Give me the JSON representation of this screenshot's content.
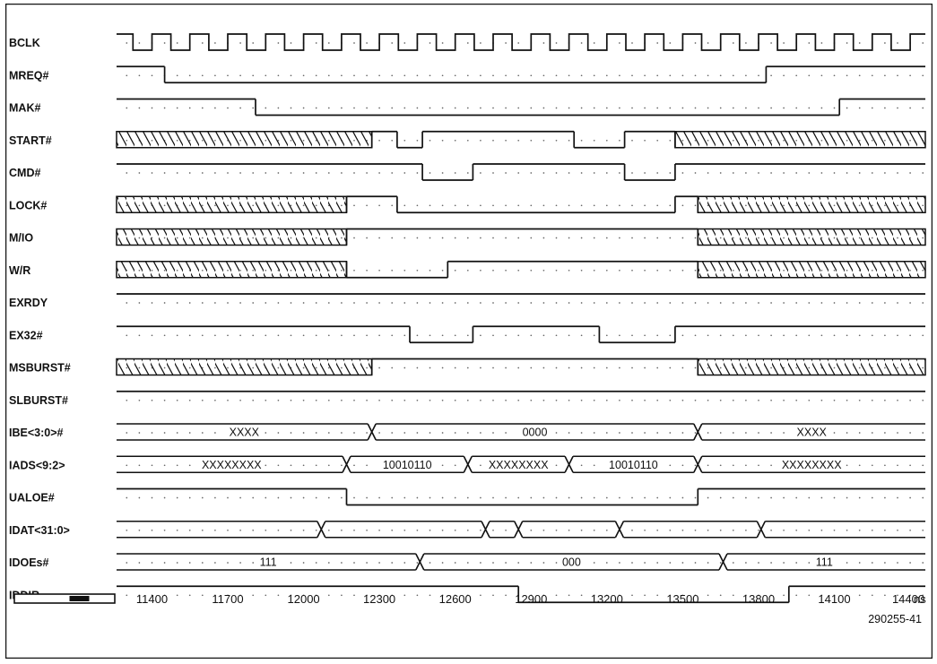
{
  "figure_id": "290255-41",
  "time_unit": "ns",
  "axis_start_ns": 11260,
  "axis_end_ns": 14460,
  "tick_values": [
    "11400",
    "11700",
    "12000",
    "12300",
    "12600",
    "12900",
    "13200",
    "13500",
    "13800",
    "14100",
    "14400"
  ],
  "clock_period_ns": 150,
  "clock_first_rise_ns": 11250,
  "colors": {
    "ink": "#111111",
    "dots": "#666666",
    "scrollbar_thumb": "#111111"
  },
  "scrollbar": {
    "thumb_start": 0.55,
    "thumb_end": 0.75
  },
  "signals": [
    {
      "name": "BCLK",
      "type": "clock"
    },
    {
      "name": "MREQ#",
      "type": "logic",
      "init": 1,
      "edges": [
        [
          11450,
          0
        ],
        [
          13830,
          1
        ]
      ]
    },
    {
      "name": "MAK#",
      "type": "logic",
      "init": 1,
      "edges": [
        [
          11810,
          0
        ],
        [
          14120,
          1
        ]
      ]
    },
    {
      "name": "START#",
      "type": "logic",
      "init": "X",
      "edges": [
        [
          12270,
          1
        ],
        [
          12370,
          0
        ],
        [
          12470,
          1
        ],
        [
          13070,
          0
        ],
        [
          13270,
          1
        ],
        [
          13470,
          "X"
        ]
      ]
    },
    {
      "name": "CMD#",
      "type": "logic",
      "init": 1,
      "edges": [
        [
          12470,
          0
        ],
        [
          12670,
          1
        ],
        [
          13270,
          0
        ],
        [
          13470,
          1
        ]
      ]
    },
    {
      "name": "LOCK#",
      "type": "logic",
      "init": "X",
      "edges": [
        [
          12170,
          1
        ],
        [
          12370,
          0
        ],
        [
          13470,
          1
        ],
        [
          13560,
          "X"
        ]
      ]
    },
    {
      "name": "M/IO",
      "type": "logic",
      "init": "X",
      "edges": [
        [
          12170,
          1
        ],
        [
          13560,
          "X"
        ]
      ]
    },
    {
      "name": "W/R",
      "type": "logic",
      "init": "X",
      "edges": [
        [
          12170,
          0
        ],
        [
          12570,
          1
        ],
        [
          13560,
          "X"
        ]
      ]
    },
    {
      "name": "EXRDY",
      "type": "logic",
      "init": 1,
      "edges": []
    },
    {
      "name": "EX32#",
      "type": "logic",
      "init": 1,
      "edges": [
        [
          12420,
          0
        ],
        [
          12670,
          1
        ],
        [
          13170,
          0
        ],
        [
          13470,
          1
        ]
      ]
    },
    {
      "name": "MSBURST#",
      "type": "logic",
      "init": "X",
      "edges": [
        [
          12270,
          1
        ],
        [
          13560,
          "X"
        ]
      ]
    },
    {
      "name": "SLBURST#",
      "type": "logic",
      "init": 1,
      "edges": []
    },
    {
      "name": "IBE<3:0>#",
      "type": "bus",
      "segments": [
        {
          "end": 12270,
          "label": "XXXX"
        },
        {
          "end": 13560,
          "label": "0000"
        },
        {
          "end": 14460,
          "label": "XXXX"
        }
      ]
    },
    {
      "name": "IADS<9:2>",
      "type": "bus",
      "segments": [
        {
          "end": 12170,
          "label": "XXXXXXXX"
        },
        {
          "end": 12650,
          "label": "10010110"
        },
        {
          "end": 13050,
          "label": "XXXXXXXX"
        },
        {
          "end": 13560,
          "label": "10010110"
        },
        {
          "end": 14460,
          "label": "XXXXXXXX"
        }
      ]
    },
    {
      "name": "UALOE#",
      "type": "logic",
      "init": 1,
      "edges": [
        [
          12170,
          0
        ],
        [
          13560,
          1
        ]
      ]
    },
    {
      "name": "IDAT<31:0>",
      "type": "bus",
      "segments": [
        {
          "end": 12070,
          "label": ""
        },
        {
          "end": 12720,
          "label": ""
        },
        {
          "end": 12850,
          "label": ""
        },
        {
          "end": 13250,
          "label": ""
        },
        {
          "end": 13810,
          "label": ""
        },
        {
          "end": 14460,
          "label": ""
        }
      ]
    },
    {
      "name": "IDOEs#",
      "type": "bus",
      "segments": [
        {
          "end": 12460,
          "label": "111"
        },
        {
          "end": 13660,
          "label": "000"
        },
        {
          "end": 14460,
          "label": "111"
        }
      ]
    },
    {
      "name": "IDDIR",
      "type": "logic",
      "init": 1,
      "edges": [
        [
          12850,
          0
        ],
        [
          13920,
          1
        ]
      ]
    }
  ]
}
